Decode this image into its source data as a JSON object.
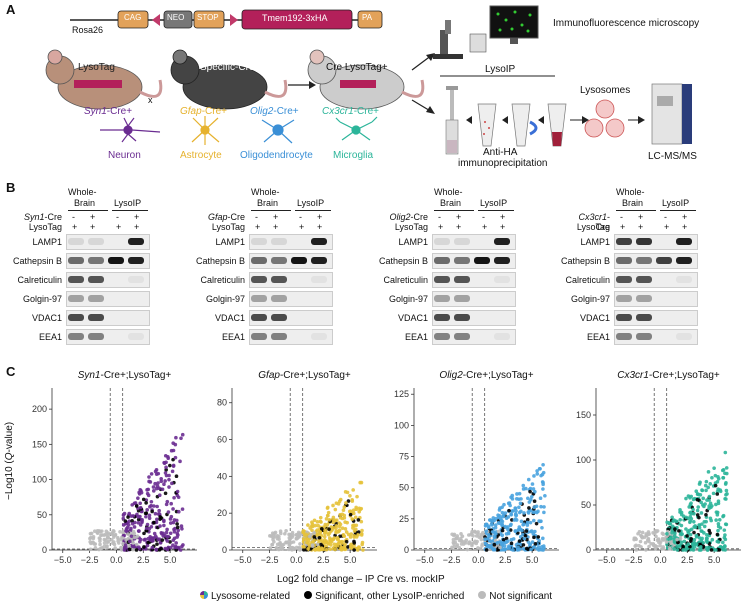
{
  "panel_labels": {
    "a": "A",
    "b": "B",
    "c": "C"
  },
  "panel_a": {
    "construct": {
      "cag": "CAG",
      "neo": "NEO",
      "stop": "STOP",
      "gene": "Tmem192-3xHA",
      "pa": "PA",
      "locus": "Rosa26"
    },
    "mice": {
      "lysotag": "LysoTag",
      "cross": "x",
      "specific": "Specific-Cre",
      "offspring": "Cre LysoTag+"
    },
    "cell_types": [
      {
        "gene": "Syn1",
        "suffix": "-Cre+",
        "name": "Neuron",
        "color": "#6a2c91"
      },
      {
        "gene": "Gfap",
        "suffix": "-Cre+",
        "name": "Astrocyte",
        "color": "#e6b22e"
      },
      {
        "gene": "Olig2",
        "suffix": "-Cre+",
        "name": "Oligodendrocyte",
        "color": "#3a8fd6"
      },
      {
        "gene": "Cx3cr1",
        "suffix": "-Cre+",
        "name": "Microglia",
        "color": "#2cb59a"
      }
    ],
    "workflow": {
      "microscopy": "Immunofluorescence microscopy",
      "lysoip": "LysoIP",
      "lysosomes": "Lysosomes",
      "ip_line1": "Anti-HA",
      "ip_line2": "immunoprecipitation",
      "ms": "LC-MS/MS"
    }
  },
  "panel_b": {
    "header_whole": "Whole-",
    "header_brain": "Brain",
    "header_lysoip": "LysoIP",
    "cre_suffix": "-Cre",
    "lysotag_label": "LysoTag",
    "cre_signs": [
      "-",
      "+",
      "-",
      "+"
    ],
    "lysotag_signs": [
      "+",
      "+",
      "+",
      "+"
    ],
    "proteins": [
      "LAMP1",
      "Cathepsin B",
      "Calreticulin",
      "Golgin-97",
      "VDAC1",
      "EEA1"
    ],
    "blots": [
      {
        "gene": "Syn1"
      },
      {
        "gene": "Gfap"
      },
      {
        "gene": "Olig2"
      },
      {
        "gene": "Cx3cr1"
      }
    ]
  },
  "chart_data": {
    "type": "scatter",
    "xlabel": "Log2 fold change – IP Cre vs. mockIP",
    "ylabel": "−Log10 (",
    "ylabel_italic": "Q",
    "ylabel_end": "-value)",
    "xticks": [
      "−5.0",
      "−2.5",
      "0.0",
      "2.5",
      "5.0"
    ],
    "xlim": [
      -6,
      7.5
    ],
    "thresholds": {
      "x": [
        -0.58,
        0.58
      ],
      "y": 1.3
    },
    "legend": [
      {
        "label": "Lysosome-related",
        "color": "multi"
      },
      {
        "label": "Significant, other LysoIP-enriched",
        "color": "#000000"
      },
      {
        "label": "Not significant",
        "color": "#bbbbbb"
      }
    ],
    "panels": [
      {
        "gene": "Syn1",
        "title_suffix": "-Cre+;LysoTag+",
        "color": "#6a2c91",
        "ylim": [
          0,
          230
        ],
        "yticks": [
          "0",
          "50",
          "100",
          "150",
          "200"
        ],
        "ytick_vals": [
          0,
          50,
          100,
          150,
          200
        ],
        "seed": 11,
        "scale": 110
      },
      {
        "gene": "Gfap",
        "title_suffix": "-Cre+;LysoTag+",
        "color": "#e6c23a",
        "ylim": [
          0,
          88
        ],
        "yticks": [
          "0",
          "20",
          "40",
          "60",
          "80"
        ],
        "ytick_vals": [
          0,
          20,
          40,
          60,
          80
        ],
        "seed": 23,
        "scale": 25
      },
      {
        "gene": "Olig2",
        "title_suffix": "-Cre+;LysoTag+",
        "color": "#49a3df",
        "ylim": [
          0,
          130
        ],
        "yticks": [
          "0",
          "25",
          "50",
          "75",
          "100",
          "125"
        ],
        "ytick_vals": [
          0,
          25,
          50,
          75,
          100,
          125
        ],
        "seed": 37,
        "scale": 45
      },
      {
        "gene": "Cx3cr1",
        "title_suffix": "-Cre+;LysoTag+",
        "color": "#2cb59a",
        "ylim": [
          0,
          180
        ],
        "yticks": [
          "0",
          "50",
          "100",
          "150"
        ],
        "ytick_vals": [
          0,
          50,
          100,
          150
        ],
        "seed": 53,
        "scale": 70
      }
    ]
  }
}
